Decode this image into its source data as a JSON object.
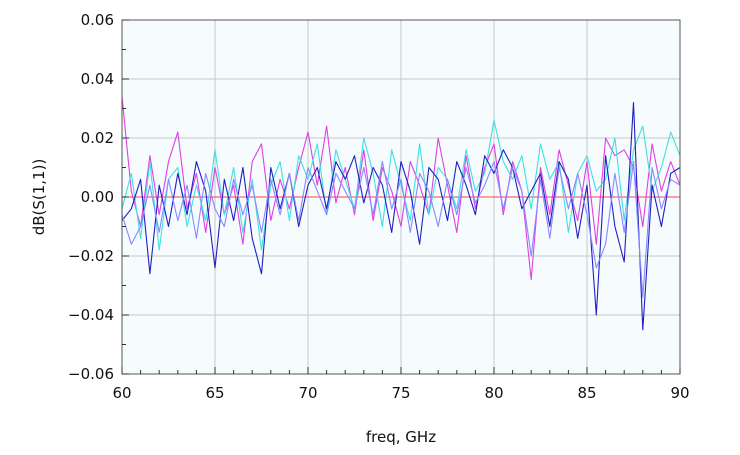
{
  "chart_data": {
    "type": "line",
    "xlabel": "freq, GHz",
    "ylabel": "dB(S(1,1))",
    "xlim": [
      60,
      90
    ],
    "ylim": [
      -0.06,
      0.06
    ],
    "grid": true,
    "x_ticks": [
      60,
      65,
      70,
      75,
      80,
      85,
      90
    ],
    "x_tick_labels": [
      "60",
      "65",
      "70",
      "75",
      "80",
      "85",
      "90"
    ],
    "y_ticks": [
      -0.06,
      -0.04,
      -0.02,
      0.0,
      0.02,
      0.04,
      0.06
    ],
    "y_tick_labels": [
      "−0.06",
      "−0.04",
      "−0.02",
      "0.00",
      "0.02",
      "0.04",
      "0.06"
    ],
    "series": [
      {
        "color": "#ff4040",
        "x": [
          60,
          90
        ],
        "y": [
          0.0,
          0.0
        ]
      },
      {
        "color": "#e040e0",
        "x": [
          60,
          60.5,
          61,
          61.5,
          62,
          62.5,
          63,
          63.5,
          64,
          64.5,
          65,
          65.5,
          66,
          66.5,
          67,
          67.5,
          68,
          68.5,
          69,
          69.5,
          70,
          70.5,
          71,
          71.5,
          72,
          72.5,
          73,
          73.5,
          74,
          74.5,
          75,
          75.5,
          76,
          76.5,
          77,
          77.5,
          78,
          78.5,
          79,
          79.5,
          80,
          80.5,
          81,
          81.5,
          82,
          82.5,
          83,
          83.5,
          84,
          84.5,
          85,
          85.5,
          86,
          86.5,
          87,
          87.5,
          88,
          88.5,
          89,
          89.5,
          90
        ],
        "y": [
          0.034,
          0.002,
          -0.01,
          0.014,
          -0.006,
          0.012,
          0.022,
          -0.004,
          0.008,
          -0.012,
          0.01,
          -0.006,
          0.004,
          -0.016,
          0.012,
          0.018,
          -0.008,
          0.006,
          -0.004,
          0.01,
          0.022,
          0.004,
          0.024,
          -0.002,
          0.01,
          -0.006,
          0.016,
          -0.008,
          0.01,
          0.002,
          -0.01,
          0.012,
          0.004,
          -0.006,
          0.02,
          0.004,
          -0.012,
          0.014,
          -0.004,
          0.01,
          0.018,
          -0.006,
          0.012,
          0.002,
          -0.028,
          0.01,
          -0.006,
          0.016,
          0.004,
          -0.008,
          0.012,
          -0.016,
          0.02,
          0.014,
          0.016,
          0.01,
          -0.01,
          0.018,
          0.002,
          0.012,
          0.004
        ]
      },
      {
        "color": "#40e0e0",
        "x": [
          60,
          60.5,
          61,
          61.5,
          62,
          62.5,
          63,
          63.5,
          64,
          64.5,
          65,
          65.5,
          66,
          66.5,
          67,
          67.5,
          68,
          68.5,
          69,
          69.5,
          70,
          70.5,
          71,
          71.5,
          72,
          72.5,
          73,
          73.5,
          74,
          74.5,
          75,
          75.5,
          76,
          76.5,
          77,
          77.5,
          78,
          78.5,
          79,
          79.5,
          80,
          80.5,
          81,
          81.5,
          82,
          82.5,
          83,
          83.5,
          84,
          84.5,
          85,
          85.5,
          86,
          86.5,
          87,
          87.5,
          88,
          88.5,
          89,
          89.5,
          90
        ],
        "y": [
          -0.004,
          0.008,
          -0.014,
          0.012,
          -0.018,
          0.006,
          0.01,
          -0.01,
          0.004,
          -0.008,
          0.016,
          -0.006,
          0.01,
          -0.012,
          0.006,
          -0.018,
          0.004,
          0.012,
          -0.008,
          0.014,
          0.006,
          0.018,
          -0.006,
          0.016,
          0.006,
          -0.004,
          0.02,
          0.008,
          -0.01,
          0.016,
          0.004,
          -0.008,
          0.018,
          -0.006,
          0.01,
          0.006,
          -0.004,
          0.016,
          0.002,
          0.008,
          0.026,
          0.012,
          0.006,
          0.014,
          -0.004,
          0.018,
          0.006,
          0.012,
          -0.012,
          0.008,
          0.014,
          0.002,
          0.006,
          0.02,
          -0.008,
          0.016,
          0.024,
          0.002,
          0.01,
          0.022,
          0.014
        ]
      },
      {
        "color": "#2020c0",
        "x": [
          60,
          60.5,
          61,
          61.5,
          62,
          62.5,
          63,
          63.5,
          64,
          64.5,
          65,
          65.5,
          66,
          66.5,
          67,
          67.5,
          68,
          68.5,
          69,
          69.5,
          70,
          70.5,
          71,
          71.5,
          72,
          72.5,
          73,
          73.5,
          74,
          74.5,
          75,
          75.5,
          76,
          76.5,
          77,
          77.5,
          78,
          78.5,
          79,
          79.5,
          80,
          80.5,
          81,
          81.5,
          82,
          82.5,
          83,
          83.5,
          84,
          84.5,
          85,
          85.5,
          86,
          86.5,
          87,
          87.5,
          88,
          88.5,
          89,
          89.5,
          90
        ],
        "y": [
          -0.008,
          -0.004,
          0.006,
          -0.026,
          0.004,
          -0.01,
          0.008,
          -0.006,
          0.012,
          0.002,
          -0.024,
          0.006,
          -0.008,
          0.01,
          -0.014,
          -0.026,
          0.01,
          -0.004,
          0.008,
          -0.01,
          0.004,
          0.01,
          -0.004,
          0.012,
          0.006,
          0.014,
          -0.002,
          0.01,
          0.004,
          -0.012,
          0.012,
          0.002,
          -0.016,
          0.01,
          0.006,
          -0.008,
          0.012,
          0.004,
          -0.006,
          0.014,
          0.008,
          0.016,
          0.01,
          -0.004,
          0.002,
          0.008,
          -0.01,
          0.012,
          0.006,
          -0.014,
          0.004,
          -0.04,
          0.014,
          -0.01,
          -0.022,
          0.032,
          -0.045,
          0.004,
          -0.01,
          0.008,
          0.01
        ]
      },
      {
        "color": "#8888ff",
        "x": [
          60,
          60.5,
          61,
          61.5,
          62,
          62.5,
          63,
          63.5,
          64,
          64.5,
          65,
          65.5,
          66,
          66.5,
          67,
          67.5,
          68,
          68.5,
          69,
          69.5,
          70,
          70.5,
          71,
          71.5,
          72,
          72.5,
          73,
          73.5,
          74,
          74.5,
          75,
          75.5,
          76,
          76.5,
          77,
          77.5,
          78,
          78.5,
          79,
          79.5,
          80,
          80.5,
          81,
          81.5,
          82,
          82.5,
          83,
          83.5,
          84,
          84.5,
          85,
          85.5,
          86,
          86.5,
          87,
          87.5,
          88,
          88.5,
          89,
          89.5,
          90
        ],
        "y": [
          -0.006,
          -0.016,
          -0.01,
          0.004,
          -0.012,
          0.006,
          -0.008,
          0.004,
          -0.014,
          0.008,
          -0.004,
          -0.01,
          0.006,
          -0.006,
          0.004,
          -0.012,
          0.006,
          -0.006,
          0.008,
          -0.008,
          0.01,
          0.002,
          -0.006,
          0.008,
          0.002,
          -0.004,
          0.01,
          -0.006,
          0.012,
          -0.004,
          0.006,
          -0.012,
          0.008,
          0.002,
          -0.01,
          0.006,
          -0.006,
          0.01,
          -0.002,
          0.004,
          0.012,
          -0.004,
          0.01,
          0.002,
          -0.02,
          0.006,
          -0.014,
          0.01,
          -0.004,
          0.008,
          -0.006,
          -0.024,
          -0.016,
          0.008,
          -0.012,
          0.012,
          -0.034,
          0.01,
          -0.004,
          0.006,
          0.004
        ]
      }
    ]
  }
}
